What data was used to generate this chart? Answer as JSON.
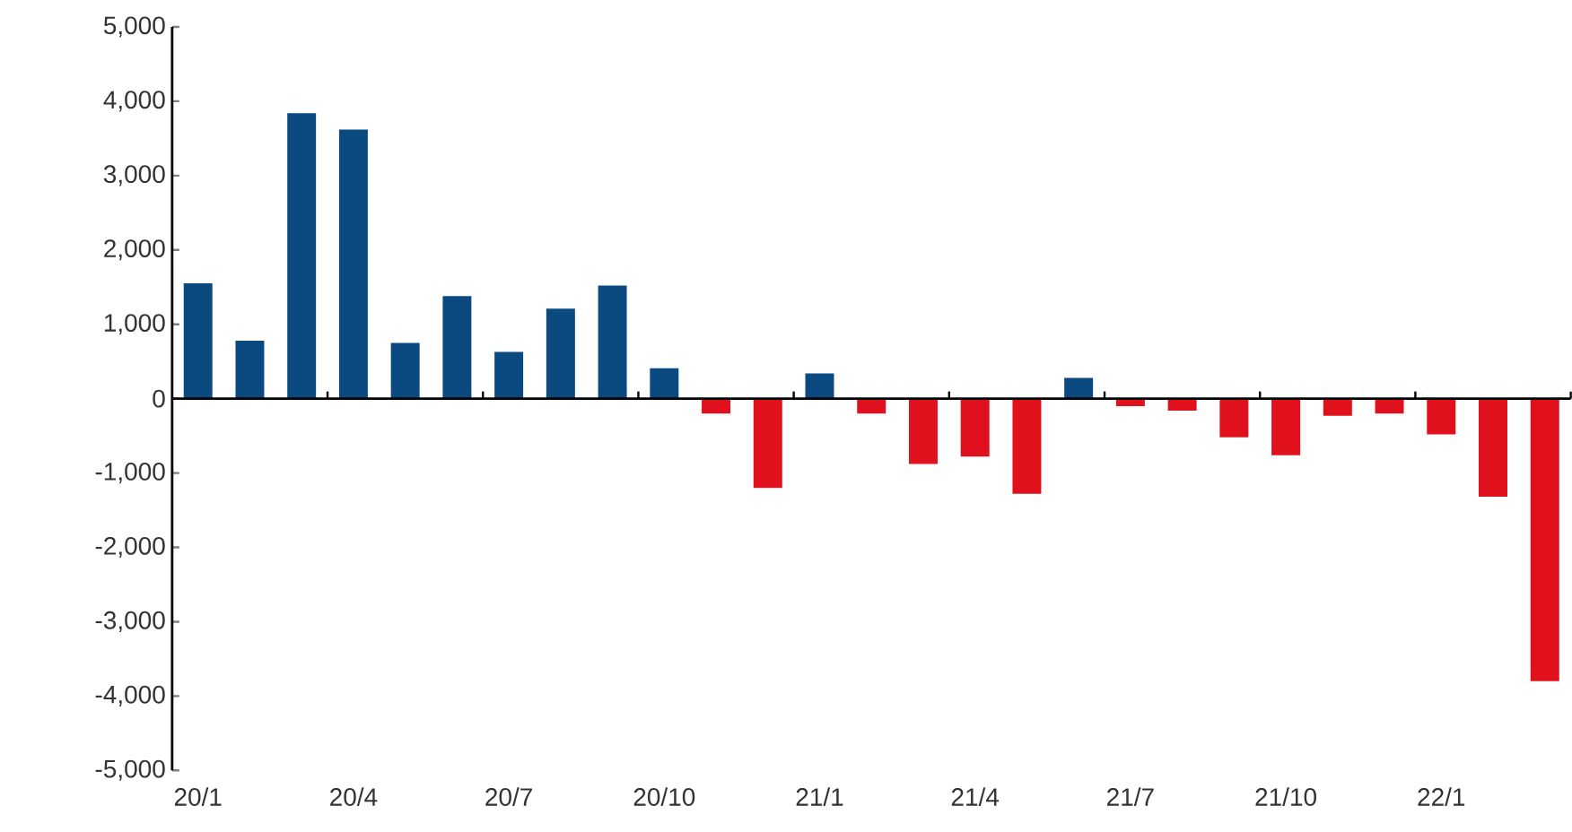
{
  "chart_data": {
    "type": "bar",
    "categories": [
      "20/1",
      null,
      null,
      "20/4",
      null,
      null,
      "20/7",
      null,
      null,
      "20/10",
      null,
      null,
      "21/1",
      null,
      null,
      "21/4",
      null,
      null,
      "21/7",
      null,
      null,
      "21/10",
      null,
      null,
      "22/1",
      null,
      null
    ],
    "values": [
      1550,
      780,
      3840,
      3620,
      750,
      1380,
      630,
      1210,
      1520,
      410,
      -200,
      -1200,
      340,
      -200,
      -880,
      -780,
      -1280,
      280,
      -100,
      -160,
      -520,
      -760,
      -230,
      -200,
      -480,
      -1320,
      -3800
    ],
    "colors": [
      "#0a4a80",
      "#0a4a80",
      "#0a4a80",
      "#0a4a80",
      "#0a4a80",
      "#0a4a80",
      "#0a4a80",
      "#0a4a80",
      "#0a4a80",
      "#0a4a80",
      "#e0101c",
      "#e0101c",
      "#0a4a80",
      "#e0101c",
      "#e0101c",
      "#e0101c",
      "#e0101c",
      "#0a4a80",
      "#e0101c",
      "#e0101c",
      "#e0101c",
      "#e0101c",
      "#e0101c",
      "#e0101c",
      "#e0101c",
      "#e0101c",
      "#e0101c"
    ],
    "ylim": [
      -5000,
      5000
    ],
    "yticks": [
      {
        "value": -5000,
        "label": "-5,000"
      },
      {
        "value": -4000,
        "label": "-4,000"
      },
      {
        "value": -3000,
        "label": "-3,000"
      },
      {
        "value": -2000,
        "label": "-2,000"
      },
      {
        "value": -1000,
        "label": "-1,000"
      },
      0,
      {
        "value": 1000,
        "label": "1,000"
      },
      {
        "value": 2000,
        "label": "2,000"
      },
      {
        "value": 3000,
        "label": "3,000"
      },
      {
        "value": 4000,
        "label": "4,000"
      },
      {
        "value": 5000,
        "label": "5,000"
      }
    ]
  }
}
